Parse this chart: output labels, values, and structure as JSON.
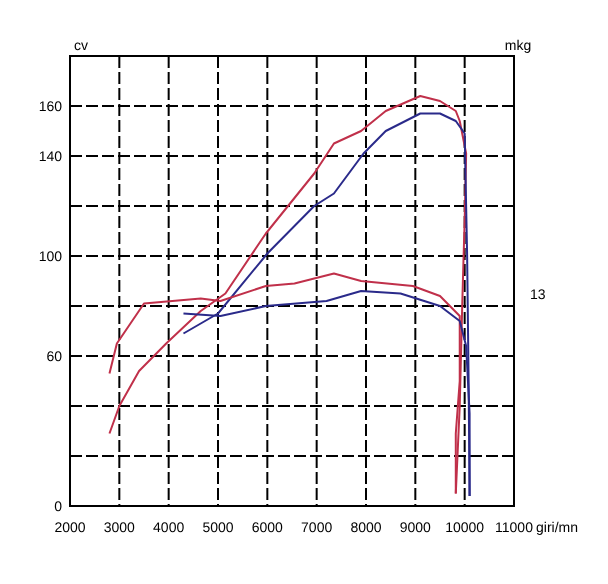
{
  "chart_data": {
    "type": "line",
    "ylabel": "cv",
    "y2label": "mkg",
    "xlabel": "giri/mn",
    "xlim": [
      2000,
      11000
    ],
    "xticks": [
      2000,
      3000,
      4000,
      5000,
      6000,
      7000,
      8000,
      9000,
      10000,
      11000
    ],
    "ylim": [
      0,
      180
    ],
    "yticks": [
      0,
      60,
      100,
      140,
      160
    ],
    "grid": true,
    "annotations": [
      "13"
    ],
    "series": [
      {
        "color": "#c0304a",
        "x": [
          2800,
          3000,
          3400,
          3950,
          4650,
          5150,
          5970,
          6950,
          7350,
          7900,
          8400,
          9100,
          9500,
          9820,
          9900,
          10030,
          10000,
          9980,
          9950,
          9900,
          9820
        ],
        "values": [
          29,
          40,
          54,
          65,
          78,
          85,
          109,
          133,
          145,
          150,
          158,
          164,
          162,
          158,
          154,
          141,
          114,
          101,
          80,
          40,
          5
        ]
      },
      {
        "color": "#2a2a8a",
        "x": [
          4300,
          5000,
          6000,
          6950,
          7350,
          7950,
          8400,
          9100,
          9500,
          9820,
          10000,
          10050,
          10080,
          10100
        ],
        "values": [
          69,
          77,
          101,
          120,
          125,
          141,
          150,
          157,
          157,
          154,
          149,
          100,
          50,
          4
        ]
      },
      {
        "color": "#c0304a",
        "x": [
          2800,
          2950,
          3500,
          4650,
          5050,
          5970,
          6550,
          7350,
          7900,
          8950,
          9500,
          9900,
          9900,
          9820,
          9820
        ],
        "values": [
          53,
          65,
          81,
          83,
          82,
          88,
          89,
          93,
          90,
          88,
          84,
          76,
          50,
          29,
          5
        ]
      },
      {
        "color": "#2a2a8a",
        "x": [
          4300,
          5050,
          5970,
          7200,
          7900,
          8700,
          9500,
          9900,
          10030,
          10100,
          10100
        ],
        "values": [
          77,
          76,
          80,
          82,
          86,
          85,
          80,
          74,
          64,
          37,
          4
        ]
      }
    ]
  }
}
